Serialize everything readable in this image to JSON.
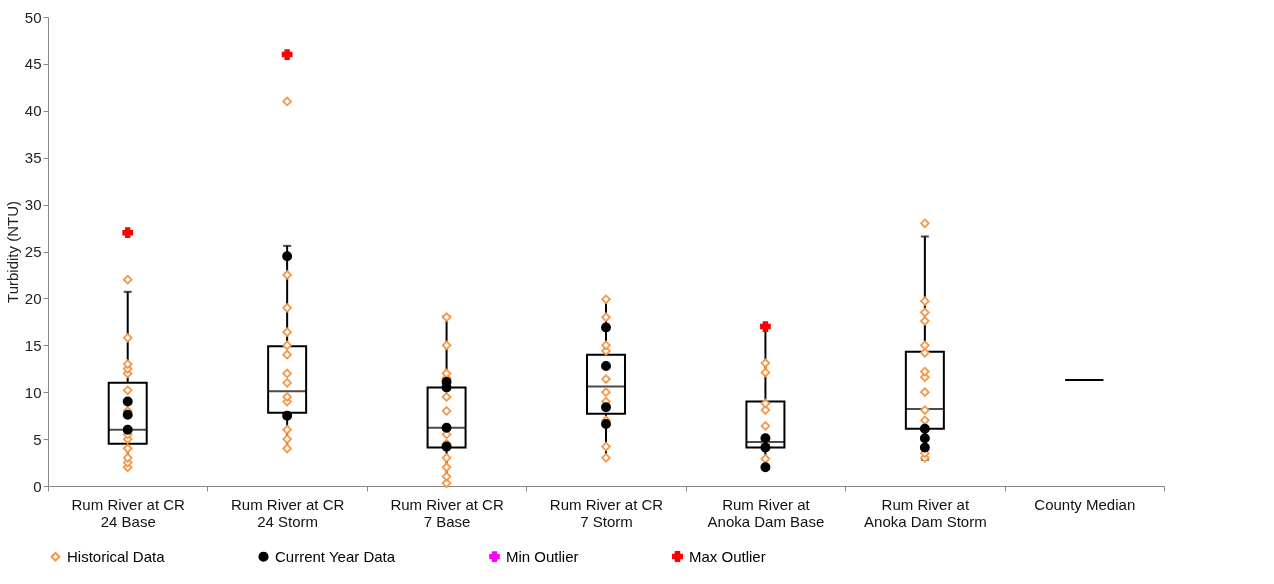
{
  "chart_data": {
    "type": "box",
    "ylabel": "Turbidity (NTU)",
    "categories": [
      "Rum River at CR 24 Base",
      "Rum River at CR 24 Storm",
      "Rum River at CR 7 Base",
      "Rum River at CR 7 Storm",
      "Rum River at Anoka Dam Base",
      "Rum River at Anoka Dam Storm",
      "County Median"
    ],
    "boxes": [
      {
        "low": 2,
        "q1": 4.5,
        "median": 6.0,
        "q3": 11.0,
        "high": 20.7
      },
      {
        "low": 4,
        "q1": 7.8,
        "median": 10.1,
        "q3": 14.9,
        "high": 25.6
      },
      {
        "low": 0.3,
        "q1": 4.1,
        "median": 6.2,
        "q3": 10.5,
        "high": 18.1
      },
      {
        "low": 3.0,
        "q1": 7.7,
        "median": 10.6,
        "q3": 14.0,
        "high": 19.9
      },
      {
        "low": 2.0,
        "q1": 4.1,
        "median": 4.7,
        "q3": 9.0,
        "high": 17.0
      },
      {
        "low": 2.8,
        "q1": 6.1,
        "median": 8.2,
        "q3": 14.3,
        "high": 26.6
      },
      {
        "low": 11.3,
        "q1": 11.3,
        "median": 11.3,
        "q3": 11.3,
        "high": 11.3
      }
    ],
    "series": [
      {
        "name": "Historical Data",
        "type": "scatter",
        "color": "#f79646",
        "marker": "diamond",
        "x": [
          "Rum River at CR 24 Base",
          "Rum River at CR 24 Base",
          "Rum River at CR 24 Base",
          "Rum River at CR 24 Base",
          "Rum River at CR 24 Base",
          "Rum River at CR 24 Base",
          "Rum River at CR 24 Base",
          "Rum River at CR 24 Base",
          "Rum River at CR 24 Base",
          "Rum River at CR 24 Base",
          "Rum River at CR 24 Base",
          "Rum River at CR 24 Base",
          "Rum River at CR 24 Base",
          "Rum River at CR 24 Storm",
          "Rum River at CR 24 Storm",
          "Rum River at CR 24 Storm",
          "Rum River at CR 24 Storm",
          "Rum River at CR 24 Storm",
          "Rum River at CR 24 Storm",
          "Rum River at CR 24 Storm",
          "Rum River at CR 24 Storm",
          "Rum River at CR 24 Storm",
          "Rum River at CR 24 Storm",
          "Rum River at CR 24 Storm",
          "Rum River at CR 24 Storm",
          "Rum River at CR 24 Storm",
          "Rum River at CR 24 Storm",
          "Rum River at CR 7 Base",
          "Rum River at CR 7 Base",
          "Rum River at CR 7 Base",
          "Rum River at CR 7 Base",
          "Rum River at CR 7 Base",
          "Rum River at CR 7 Base",
          "Rum River at CR 7 Base",
          "Rum River at CR 7 Base",
          "Rum River at CR 7 Base",
          "Rum River at CR 7 Base",
          "Rum River at CR 7 Base",
          "Rum River at CR 7 Base",
          "Rum River at CR 7 Storm",
          "Rum River at CR 7 Storm",
          "Rum River at CR 7 Storm",
          "Rum River at CR 7 Storm",
          "Rum River at CR 7 Storm",
          "Rum River at CR 7 Storm",
          "Rum River at CR 7 Storm",
          "Rum River at CR 7 Storm",
          "Rum River at CR 7 Storm",
          "Rum River at CR 7 Storm",
          "Rum River at Anoka Dam Base",
          "Rum River at Anoka Dam Base",
          "Rum River at Anoka Dam Base",
          "Rum River at Anoka Dam Base",
          "Rum River at Anoka Dam Base",
          "Rum River at Anoka Dam Base",
          "Rum River at Anoka Dam Base",
          "Rum River at Anoka Dam Storm",
          "Rum River at Anoka Dam Storm",
          "Rum River at Anoka Dam Storm",
          "Rum River at Anoka Dam Storm",
          "Rum River at Anoka Dam Storm",
          "Rum River at Anoka Dam Storm",
          "Rum River at Anoka Dam Storm",
          "Rum River at Anoka Dam Storm",
          "Rum River at Anoka Dam Storm",
          "Rum River at Anoka Dam Storm",
          "Rum River at Anoka Dam Storm",
          "Rum River at Anoka Dam Storm",
          "Rum River at Anoka Dam Storm"
        ],
        "values": [
          2,
          2.5,
          3,
          4,
          5,
          5.5,
          8,
          10.2,
          12,
          12.5,
          13,
          15.8,
          22,
          4,
          5,
          6,
          null,
          9,
          9.5,
          11,
          12,
          14,
          15,
          16.4,
          19,
          22.5,
          41,
          0.3,
          1,
          2,
          3,
          4.5,
          5.5,
          8,
          9.5,
          11.5,
          12,
          15,
          18,
          3,
          4.2,
          7,
          9,
          10,
          11.4,
          14.4,
          15,
          18,
          19.9,
          2.9,
          4.5,
          6.4,
          8.1,
          8.8,
          12.1,
          13.1,
          3,
          3.5,
          7,
          8.1,
          10,
          11.6,
          12.2,
          14.2,
          15,
          17.6,
          18.5,
          19.7,
          28
        ]
      },
      {
        "name": "Current Year Data",
        "type": "scatter",
        "color": "#000000",
        "marker": "circle",
        "x": [
          "Rum River at CR 24 Base",
          "Rum River at CR 24 Base",
          "Rum River at CR 24 Base",
          "Rum River at CR 24 Storm",
          "Rum River at CR 24 Storm",
          "Rum River at CR 7 Base",
          "Rum River at CR 7 Base",
          "Rum River at CR 7 Base",
          "Rum River at CR 7 Base",
          "Rum River at CR 7 Storm",
          "Rum River at CR 7 Storm",
          "Rum River at CR 7 Storm",
          "Rum River at CR 7 Storm",
          "Rum River at Anoka Dam Base",
          "Rum River at Anoka Dam Base",
          "Rum River at Anoka Dam Base",
          "Rum River at Anoka Dam Storm",
          "Rum River at Anoka Dam Storm",
          "Rum River at Anoka Dam Storm"
        ],
        "values": [
          6,
          7.6,
          9,
          7.5,
          24.5,
          4.2,
          6.2,
          10.5,
          11.1,
          6.6,
          8.4,
          12.8,
          16.9,
          2.0,
          4.1,
          5.1,
          4.1,
          5.1,
          6.1
        ]
      },
      {
        "name": "Min Outlier",
        "type": "scatter",
        "color": "#ff00ff",
        "marker": "cross",
        "values": [
          null,
          null,
          null,
          null,
          null,
          null,
          null
        ]
      },
      {
        "name": "Max Outlier",
        "type": "scatter",
        "color": "#ff0000",
        "marker": "cross",
        "x": [
          "Rum River at CR 24 Base",
          "Rum River at CR 24 Storm",
          "Rum River at Anoka Dam Base"
        ],
        "values": [
          27,
          46,
          17
        ]
      }
    ],
    "ylim": [
      0,
      50
    ],
    "yticks": [
      0,
      5,
      10,
      15,
      20,
      25,
      30,
      35,
      40,
      45,
      50
    ],
    "grid": false,
    "legend": "bottom",
    "color": "#000000"
  }
}
